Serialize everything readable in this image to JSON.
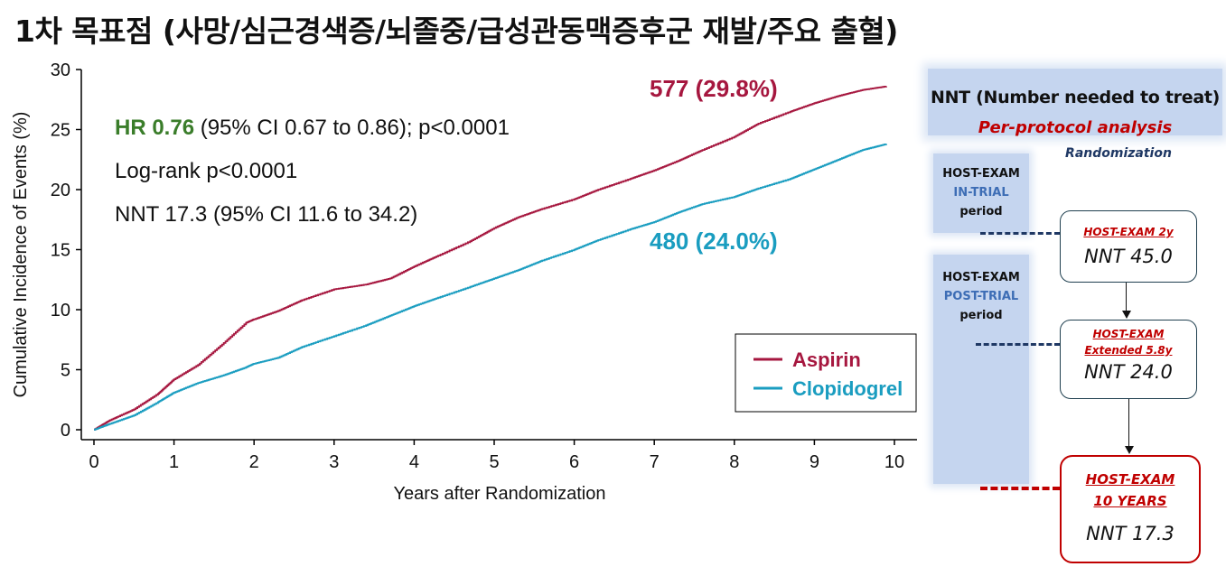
{
  "page_title": "1차 목표점 (사망/심근경색증/뇌졸중/급성관동맥증후군 재발/주요 출혈)",
  "colors": {
    "aspirin": "#a6173f",
    "clopidogrel": "#1a9dc0",
    "hr_green": "#3a7d2a",
    "red": "#c00000",
    "navy": "#1f3864"
  },
  "chart_data": {
    "type": "line",
    "xlabel": "Years after Randomization",
    "ylabel": "Cumulative Incidence of Events (%)",
    "xlim": [
      0,
      10
    ],
    "ylim": [
      0,
      30
    ],
    "x_ticks": [
      "0",
      "1",
      "2",
      "3",
      "4",
      "5",
      "6",
      "7",
      "8",
      "9",
      "10"
    ],
    "y_ticks": [
      "0",
      "5",
      "10",
      "15",
      "20",
      "25",
      "30"
    ],
    "grid": false,
    "legend_position": "bottom-right",
    "series": [
      {
        "name": "Aspirin",
        "color": "#a6173f",
        "end_label": "577 (29.8%)",
        "x": [
          0,
          0.2,
          0.5,
          0.8,
          1.0,
          1.3,
          1.6,
          1.9,
          2.0,
          2.3,
          2.6,
          3.0,
          3.4,
          3.7,
          4.0,
          4.3,
          4.7,
          5.0,
          5.3,
          5.6,
          6.0,
          6.3,
          6.7,
          7.0,
          7.3,
          7.6,
          8.0,
          8.3,
          8.7,
          9.0,
          9.3,
          9.6,
          9.9
        ],
        "y": [
          0,
          0.8,
          1.7,
          3.0,
          4.2,
          5.4,
          7.1,
          8.9,
          9.2,
          9.9,
          10.8,
          11.7,
          12.1,
          12.6,
          13.6,
          14.5,
          15.7,
          16.8,
          17.7,
          18.4,
          19.2,
          20.0,
          20.9,
          21.6,
          22.4,
          23.3,
          24.4,
          25.5,
          26.5,
          27.2,
          27.8,
          28.3,
          28.6
        ]
      },
      {
        "name": "Clopidogrel",
        "color": "#1a9dc0",
        "end_label": "480 (24.0%)",
        "x": [
          0,
          0.2,
          0.5,
          0.8,
          1.0,
          1.3,
          1.6,
          1.9,
          2.0,
          2.3,
          2.6,
          3.0,
          3.4,
          3.7,
          4.0,
          4.3,
          4.7,
          5.0,
          5.3,
          5.6,
          6.0,
          6.3,
          6.7,
          7.0,
          7.3,
          7.6,
          8.0,
          8.3,
          8.7,
          9.0,
          9.3,
          9.6,
          9.9
        ],
        "y": [
          0,
          0.5,
          1.2,
          2.3,
          3.1,
          3.9,
          4.5,
          5.2,
          5.5,
          6.0,
          6.9,
          7.8,
          8.7,
          9.5,
          10.3,
          11.0,
          11.9,
          12.6,
          13.3,
          14.1,
          15.0,
          15.8,
          16.7,
          17.3,
          18.1,
          18.8,
          19.4,
          20.1,
          20.9,
          21.7,
          22.5,
          23.3,
          23.8
        ]
      }
    ],
    "annotations": {
      "hr_label": "HR 0.76",
      "hr_rest": " (95% CI 0.67 to 0.86); p<0.0001",
      "logrank": "Log-rank p<0.0001",
      "nnt": "NNT 17.3 (95% CI 11.6 to 34.2)"
    }
  },
  "nnt_panel": {
    "title": "NNT (Number needed to treat)",
    "subtitle": "Per-protocol analysis",
    "randomization": "Randomization",
    "period1": {
      "line1": "HOST-EXAM",
      "line2": "IN-TRIAL",
      "line3": "period"
    },
    "period2": {
      "line1": "HOST-EXAM",
      "line2": "POST-TRIAL",
      "line3": "period"
    },
    "boxes": [
      {
        "label1": "HOST-EXAM  2y",
        "nnt": "NNT 45.0"
      },
      {
        "label1": "HOST-EXAM",
        "label2": "Extended 5.8y",
        "nnt": "NNT 24.0"
      },
      {
        "label1": "HOST-EXAM",
        "label2": "10 YEARS",
        "nnt": "NNT 17.3"
      }
    ]
  }
}
